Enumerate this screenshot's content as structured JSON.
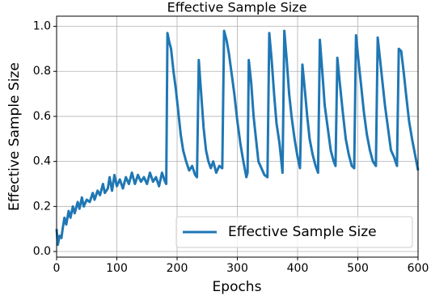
{
  "chart_data": {
    "type": "line",
    "title": "Effective Sample Size",
    "xlabel": "Epochs",
    "ylabel": "Effective Sample Size",
    "x": [
      0,
      2,
      5,
      8,
      10,
      13,
      16,
      20,
      23,
      27,
      30,
      35,
      38,
      42,
      45,
      50,
      55,
      60,
      63,
      68,
      72,
      77,
      80,
      85,
      88,
      92,
      96,
      100,
      105,
      110,
      115,
      120,
      125,
      130,
      135,
      140,
      145,
      150,
      155,
      160,
      165,
      170,
      175,
      180,
      182,
      184,
      187,
      190,
      194,
      198,
      202,
      206,
      210,
      215,
      220,
      225,
      230,
      233,
      236,
      240,
      244,
      248,
      252,
      256,
      260,
      265,
      270,
      275,
      278,
      282,
      286,
      290,
      295,
      300,
      305,
      310,
      315,
      317,
      319,
      323,
      327,
      331,
      335,
      340,
      345,
      350,
      353,
      357,
      361,
      365,
      370,
      375,
      378,
      382,
      386,
      390,
      395,
      400,
      404,
      408,
      412,
      416,
      420,
      425,
      430,
      434,
      437,
      441,
      445,
      450,
      455,
      460,
      463,
      466,
      470,
      475,
      480,
      485,
      490,
      494,
      497,
      501,
      505,
      510,
      515,
      520,
      525,
      530,
      533,
      537,
      541,
      545,
      550,
      555,
      560,
      565,
      568,
      572,
      576,
      580,
      585,
      590,
      595,
      600
    ],
    "series": [
      {
        "name": "Effective Sample Size",
        "color": "#1f77b4",
        "values": [
          0.1,
          0.03,
          0.07,
          0.06,
          0.1,
          0.15,
          0.12,
          0.18,
          0.15,
          0.2,
          0.17,
          0.22,
          0.19,
          0.24,
          0.2,
          0.23,
          0.22,
          0.26,
          0.23,
          0.27,
          0.25,
          0.3,
          0.26,
          0.28,
          0.33,
          0.27,
          0.34,
          0.29,
          0.32,
          0.28,
          0.33,
          0.3,
          0.35,
          0.3,
          0.34,
          0.31,
          0.33,
          0.3,
          0.35,
          0.31,
          0.33,
          0.29,
          0.35,
          0.31,
          0.3,
          0.97,
          0.93,
          0.9,
          0.8,
          0.72,
          0.62,
          0.52,
          0.45,
          0.4,
          0.36,
          0.38,
          0.34,
          0.33,
          0.85,
          0.7,
          0.55,
          0.45,
          0.4,
          0.37,
          0.4,
          0.35,
          0.38,
          0.37,
          0.98,
          0.94,
          0.88,
          0.8,
          0.7,
          0.58,
          0.48,
          0.4,
          0.33,
          0.35,
          0.85,
          0.75,
          0.6,
          0.5,
          0.4,
          0.37,
          0.34,
          0.33,
          0.97,
          0.85,
          0.7,
          0.57,
          0.48,
          0.35,
          0.98,
          0.85,
          0.7,
          0.6,
          0.5,
          0.42,
          0.37,
          0.83,
          0.72,
          0.6,
          0.5,
          0.43,
          0.38,
          0.35,
          0.94,
          0.8,
          0.65,
          0.55,
          0.45,
          0.4,
          0.38,
          0.86,
          0.75,
          0.62,
          0.5,
          0.43,
          0.38,
          0.37,
          0.96,
          0.85,
          0.75,
          0.62,
          0.52,
          0.45,
          0.4,
          0.38,
          0.95,
          0.85,
          0.75,
          0.65,
          0.55,
          0.45,
          0.42,
          0.38,
          0.9,
          0.89,
          0.8,
          0.7,
          0.58,
          0.5,
          0.43,
          0.36
        ]
      }
    ],
    "xlim": [
      0,
      600
    ],
    "ylim": [
      -0.025,
      1.045
    ],
    "xticks": [
      0,
      100,
      200,
      300,
      400,
      500,
      600
    ],
    "yticks": [
      {
        "value": 0,
        "label": "0.0"
      },
      0.2,
      0.4,
      0.6,
      0.8,
      {
        "value": 1,
        "label": "1.0"
      }
    ],
    "grid": true,
    "legend": "lower right"
  }
}
